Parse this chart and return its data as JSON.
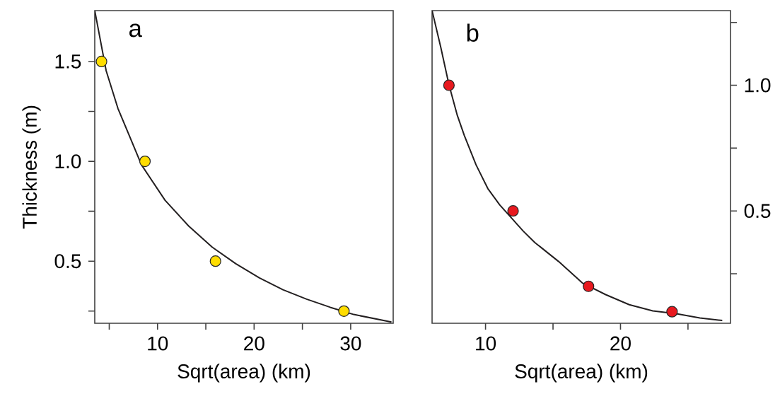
{
  "chart_data": [
    {
      "type": "scatter",
      "annotations": [
        "a"
      ],
      "xlabel": "Sqrt(area) (km)",
      "ylabel": "Thickness (m)",
      "xlim": [
        3.5,
        34.4
      ],
      "ylim": [
        0.189,
        1.755
      ],
      "xticks": [
        {
          "value": 5,
          "label": null
        },
        10,
        {
          "value": 15,
          "label": null
        },
        20,
        {
          "value": 25,
          "label": null
        },
        30
      ],
      "yticks": [
        {
          "value": 0.25,
          "label": null
        },
        0.5,
        {
          "value": 0.75,
          "label": null
        },
        {
          "value": 1,
          "label": "1.0"
        },
        {
          "value": 1.25,
          "label": null
        },
        1.5
      ],
      "grid": false,
      "series": [
        {
          "type": "line",
          "color": "#231f20",
          "x": [
            3.5,
            4.68,
            5.9,
            7.12,
            8.34,
            10.78,
            13.22,
            15.67,
            18.11,
            20.55,
            22.99,
            25.43,
            27.88,
            30.32,
            34.22
          ],
          "values": [
            1.755,
            1.454,
            1.265,
            1.124,
            0.982,
            0.805,
            0.676,
            0.57,
            0.487,
            0.416,
            0.357,
            0.31,
            0.269,
            0.233,
            0.195
          ]
        },
        {
          "type": "scatter",
          "marker": "circle",
          "color": "#ffdd00",
          "x": [
            4.2,
            8.7,
            16.0,
            29.3
          ],
          "values": [
            1.5,
            1.0,
            0.5,
            0.25
          ]
        }
      ]
    },
    {
      "type": "scatter",
      "annotations": [
        "b"
      ],
      "xlabel": "Sqrt(area) (km)",
      "xlim": [
        6.04,
        28.15
      ],
      "y2lim": [
        0.053,
        1.297
      ],
      "xticks": [
        10,
        {
          "value": 15,
          "label": null
        },
        20,
        {
          "value": 25,
          "label": null
        }
      ],
      "y2ticks": [
        {
          "value": 0.25,
          "label": null
        },
        0.5,
        {
          "value": 0.75,
          "label": null
        },
        {
          "value": 1,
          "label": "1.0"
        },
        {
          "value": 1.25,
          "label": null
        }
      ],
      "grid": false,
      "series": [
        {
          "type": "line",
          "axis": "y2",
          "color": "#231f20",
          "x": [
            6.04,
            6.68,
            7.29,
            7.91,
            8.43,
            9.3,
            10.17,
            11.05,
            11.92,
            12.79,
            13.66,
            15.41,
            17.16,
            18.9,
            20.65,
            22.39,
            24.14,
            25.88,
            27.54
          ],
          "values": [
            1.297,
            1.152,
            1.002,
            0.88,
            0.8,
            0.683,
            0.589,
            0.524,
            0.472,
            0.42,
            0.374,
            0.299,
            0.214,
            0.167,
            0.127,
            0.102,
            0.091,
            0.074,
            0.064
          ]
        },
        {
          "type": "scatter",
          "axis": "y2",
          "marker": "circle",
          "color": "#e8191f",
          "x": [
            7.29,
            12.04,
            17.63,
            23.82
          ],
          "values": [
            1.0,
            0.5,
            0.2,
            0.099
          ]
        }
      ]
    }
  ]
}
